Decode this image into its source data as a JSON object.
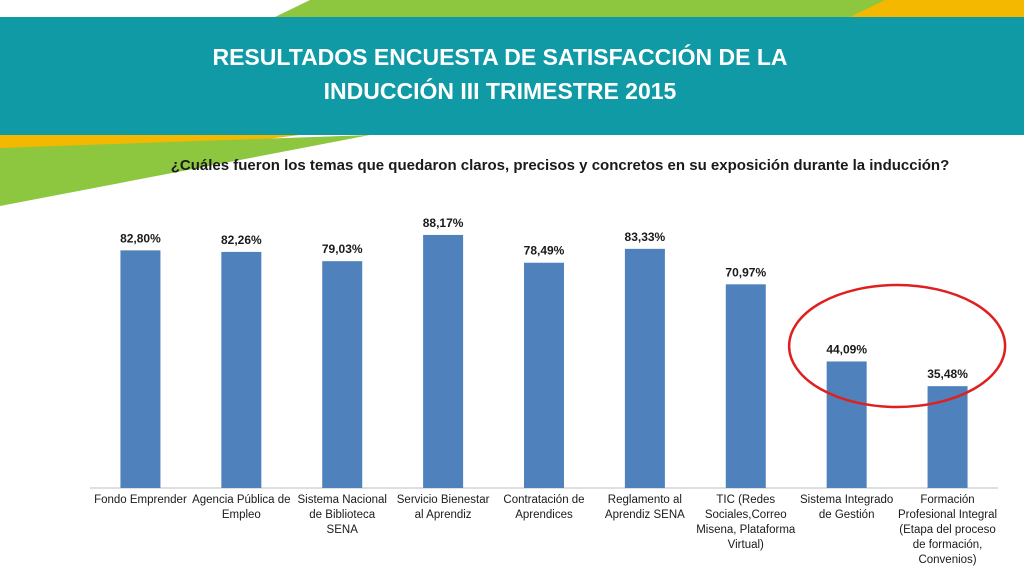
{
  "slide": {
    "title": "RESULTADOS ENCUESTA DE SATISFACCIÓN DE LA INDUCCIÓN III TRIMESTRE 2015",
    "colors": {
      "header": "#0f9aa5",
      "accent_green": "#8dc63f",
      "accent_yellow": "#f5b800",
      "bar": "#4f81bd",
      "highlight": "#e02020"
    }
  },
  "chart_data": {
    "type": "bar",
    "title": "¿Cuáles fueron los temas que quedaron claros, precisos y concretos en su exposición durante la inducción?",
    "categories": [
      "Fondo Emprender",
      "Agencia Pública de Empleo",
      "Sistema Nacional de Biblioteca SENA",
      "Servicio Bienestar al Aprendiz",
      "Contratación de Aprendices",
      "Reglamento al Aprendiz SENA",
      "TIC (Redes Sociales,Correo Misena, Plataforma Virtual)",
      "Sistema Integrado de Gestión",
      "Formación Profesional Integral (Etapa del proceso de formación, Convenios)"
    ],
    "values": [
      82.8,
      82.26,
      79.03,
      88.17,
      78.49,
      83.33,
      70.97,
      44.09,
      35.48
    ],
    "value_labels": [
      "82,80%",
      "82,26%",
      "79,03%",
      "88,17%",
      "78,49%",
      "83,33%",
      "70,97%",
      "44,09%",
      "35,48%"
    ],
    "ylim": [
      0,
      100
    ],
    "grid": false,
    "highlighted_categories": [
      "Sistema Integrado de Gestión",
      "Formación Profesional Integral (Etapa del proceso de formación, Convenios)"
    ]
  }
}
